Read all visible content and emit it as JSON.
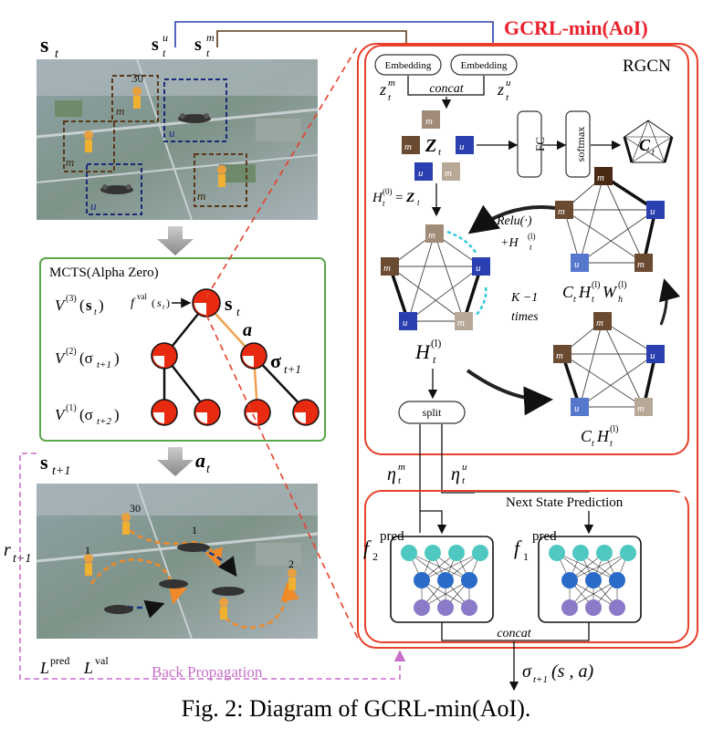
{
  "caption": "Fig. 2: Diagram of GCRL-min(AoI).",
  "main_title": "GCRL-min(AoI)",
  "rgcn": {
    "title": "RGCN",
    "embedding_left": "Embedding",
    "embedding_right": "Embedding",
    "z_m": "z",
    "z_u": "z",
    "concat": "concat",
    "Z": "Z",
    "fc": "FC",
    "softmax": "softmax",
    "C": "C",
    "h0": "H",
    "relu": "Relu(·)",
    "plus_h": "+H",
    "k_minus_1": "K −1",
    "times": "times",
    "cth_w": "C",
    "cth": "C",
    "H_l": "H",
    "split": "split"
  },
  "mcts": {
    "title": "MCTS(Alpha Zero)",
    "v3": "V",
    "v2": "V",
    "v1": "V",
    "fval": "f",
    "s_t": "s",
    "a": "a",
    "sigma": "σ"
  },
  "left": {
    "s_t": "s",
    "s_tu": "s",
    "s_tm": "s",
    "s_t1": "s",
    "a_t": "a",
    "r_t1": "r",
    "L_pred": "L",
    "L_val": "L",
    "back_prop": "Back Propagation",
    "top_labels": {
      "m1": "m",
      "m2": "m",
      "m3": "m",
      "u1": "u",
      "u2": "u",
      "aoi": "30"
    },
    "bot_labels": {
      "a30": "30",
      "a1a": "1",
      "a1b": "1",
      "a2": "2"
    }
  },
  "next_state": {
    "title": "Next State Prediction",
    "eta_m": "η",
    "eta_u": "η",
    "f2": "f",
    "f1": "f",
    "pred": "pred",
    "concat": "concat",
    "sigma_out": "σ",
    "sigma_args": "(s , a)"
  },
  "node_labels": {
    "m1": "m",
    "m2": "m",
    "m3": "m",
    "u1": "u",
    "u2": "u"
  },
  "colors": {
    "accent_red": "#e8402a",
    "mcts_green": "#5aa84a",
    "purple_dash": "#c86fc8",
    "m1": "#a08a78",
    "m2": "#b8a898",
    "m3": "#6b4a32",
    "m1_dark": "#4a2a15",
    "u1": "#2a3fb0",
    "u2": "#5577cc"
  }
}
